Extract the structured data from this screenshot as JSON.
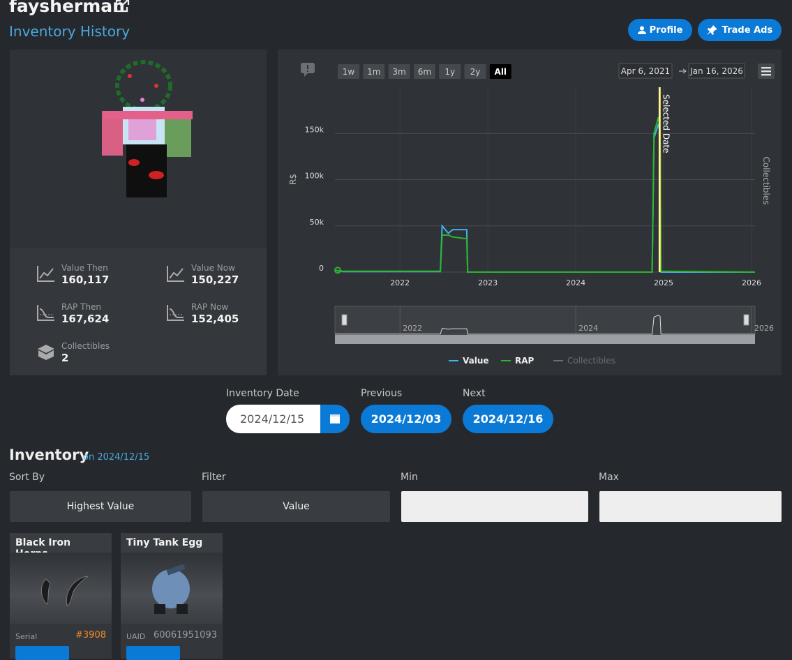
{
  "header": {
    "username": "faysherman",
    "subtitle": "Inventory History",
    "buttons": [
      "Profile",
      "Trade Ads"
    ]
  },
  "stats": [
    {
      "label": "Value Then",
      "value": "160,117"
    },
    {
      "label": "Value Now",
      "value": "150,227"
    },
    {
      "label": "RAP Then",
      "value": "167,624"
    },
    {
      "label": "RAP Now",
      "value": "152,405"
    },
    {
      "label": "Collectibles",
      "value": "2"
    }
  ],
  "chart_data": {
    "type": "line",
    "range_buttons": [
      "1w",
      "1m",
      "3m",
      "6m",
      "1y",
      "2y",
      "All"
    ],
    "selected_range": "All",
    "date_from": "Apr 6, 2021",
    "date_to": "Jan 16, 2026",
    "ylabel": "R$",
    "y2label": "Collectibles",
    "annotation": "Selected Date",
    "selected_x": 2024.955,
    "x": [
      2021.26,
      2021.35,
      2022.46,
      2022.48,
      2022.55,
      2022.6,
      2022.76,
      2022.77,
      2024.87,
      2024.89,
      2024.94,
      2024.96,
      2024.97,
      2026.04
    ],
    "series": [
      {
        "name": "Value",
        "color": "#3fb6e8",
        "values": [
          2000,
          500,
          500,
          50000,
          42000,
          46000,
          46000,
          0,
          0,
          145000,
          160117,
          150227,
          0,
          0
        ]
      },
      {
        "name": "RAP",
        "color": "#2db52d",
        "values": [
          2000,
          1000,
          1000,
          40000,
          40000,
          38000,
          36000,
          0,
          0,
          150000,
          167624,
          152405,
          1000,
          0
        ]
      },
      {
        "name": "Collectibles",
        "color": "#6a6d72",
        "axis": "y2",
        "visible": false,
        "values": [
          null,
          null,
          null,
          null,
          null,
          null,
          null,
          null,
          null,
          null,
          null,
          null,
          null,
          null
        ]
      }
    ],
    "xlim": [
      2021.26,
      2026.04
    ],
    "xticks": [
      2022,
      2023,
      2024,
      2025,
      2026
    ],
    "ylim": [
      0,
      200000
    ],
    "yticks": [
      0,
      {
        "value": 50000,
        "label": "50k"
      },
      {
        "value": 100000,
        "label": "100k"
      },
      {
        "value": 150000,
        "label": "150k"
      }
    ],
    "navigator_xticks": [
      2022,
      2024,
      2026
    ],
    "grid": true
  },
  "date_nav": {
    "date_label": "Inventory Date",
    "date": "2024/12/15",
    "previous_label": "Previous",
    "previous": "2024/12/03",
    "next_label": "Next",
    "next": "2024/12/16"
  },
  "inventory": {
    "title": "Inventory",
    "subtitle": "on 2024/12/15",
    "filters": [
      {
        "label": "Sort By",
        "value": "Highest Value"
      },
      {
        "label": "Filter",
        "value": "Value"
      },
      {
        "label": "Min"
      },
      {
        "label": "Max"
      }
    ],
    "items": [
      {
        "name": "Black Iron Horns",
        "id_label": "Serial",
        "id": "#3908"
      },
      {
        "name": "Tiny Tank Egg",
        "id_label": "UAID",
        "id": "60061951093"
      }
    ]
  }
}
